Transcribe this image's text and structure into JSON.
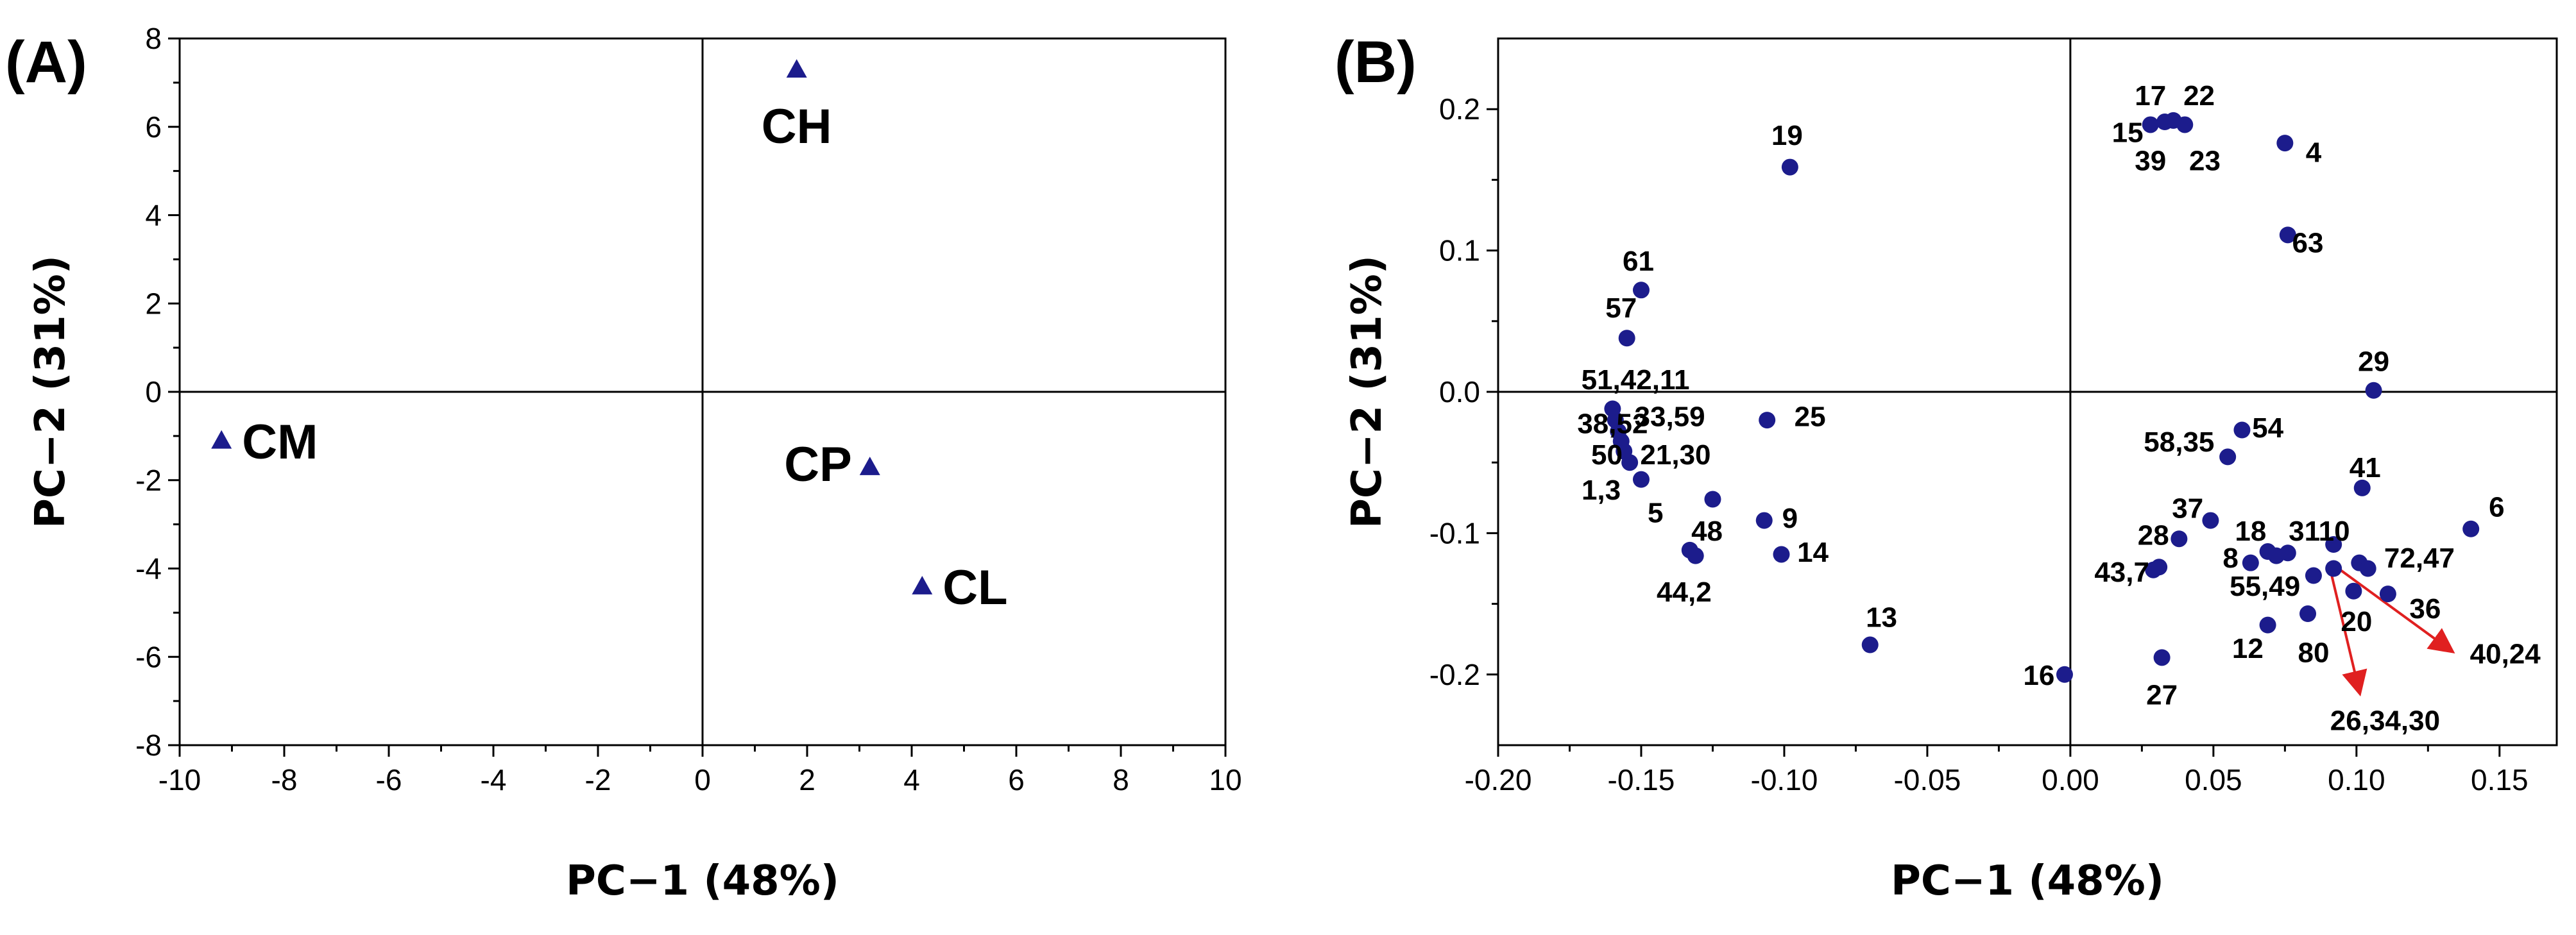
{
  "chart_data": [
    {
      "type": "scatter",
      "panel_label": "(A)",
      "xlabel": "PC−1 (48%)",
      "ylabel": "PC−2 (31%)",
      "xlim": [
        -10,
        10
      ],
      "ylim": [
        -8,
        8
      ],
      "x_ticks": [
        -10,
        -8,
        -6,
        -4,
        -2,
        0,
        2,
        4,
        6,
        8,
        10
      ],
      "y_ticks": [
        -8,
        -6,
        -4,
        -2,
        0,
        2,
        4,
        6,
        8
      ],
      "x_tick_labels": [
        "-10",
        "-8",
        "-6",
        "-4",
        "-2",
        "0",
        "2",
        "4",
        "6",
        "8",
        "10"
      ],
      "y_tick_labels": [
        "-8",
        "-6",
        "-4",
        "-2",
        "0",
        "2",
        "4",
        "6",
        "8"
      ],
      "marker": "triangle",
      "marker_color": "#1c1c8c",
      "points": [
        {
          "label": "CH",
          "x": 1.8,
          "y": 7.3,
          "label_pos": "below"
        },
        {
          "label": "CM",
          "x": -9.2,
          "y": -1.1,
          "label_pos": "right"
        },
        {
          "label": "CP",
          "x": 3.2,
          "y": -1.7,
          "label_pos": "left"
        },
        {
          "label": "CL",
          "x": 4.2,
          "y": -4.4,
          "label_pos": "right"
        }
      ]
    },
    {
      "type": "scatter",
      "panel_label": "(B)",
      "xlabel": "PC−1 (48%)",
      "ylabel": "PC−2 (31%)",
      "xlim": [
        -0.2,
        0.17
      ],
      "ylim": [
        -0.25,
        0.25
      ],
      "x_ticks": [
        -0.2,
        -0.15,
        -0.1,
        -0.05,
        0.0,
        0.05,
        0.1,
        0.15
      ],
      "y_ticks": [
        -0.2,
        -0.1,
        0.0,
        0.1,
        0.2
      ],
      "x_tick_labels": [
        "-0.20",
        "-0.15",
        "-0.10",
        "-0.05",
        "0.00",
        "0.05",
        "0.10",
        "0.15"
      ],
      "y_tick_labels": [
        "-0.2",
        "-0.1",
        "0.0",
        "0.1",
        "0.2"
      ],
      "marker": "circle",
      "marker_color": "#1c1c8c",
      "arrow_color": "#e02020",
      "points": [
        {
          "x": 0.028,
          "y": 0.189
        },
        {
          "x": 0.033,
          "y": 0.191
        },
        {
          "x": 0.036,
          "y": 0.192
        },
        {
          "x": 0.04,
          "y": 0.189
        },
        {
          "x": 0.075,
          "y": 0.176
        },
        {
          "x": -0.098,
          "y": 0.159
        },
        {
          "x": 0.076,
          "y": 0.111
        },
        {
          "x": -0.15,
          "y": 0.072
        },
        {
          "x": -0.155,
          "y": 0.038
        },
        {
          "x": 0.106,
          "y": 0.001
        },
        {
          "x": -0.16,
          "y": -0.012
        },
        {
          "x": -0.159,
          "y": -0.02
        },
        {
          "x": -0.158,
          "y": -0.028
        },
        {
          "x": -0.157,
          "y": -0.035
        },
        {
          "x": -0.156,
          "y": -0.042
        },
        {
          "x": -0.154,
          "y": -0.05
        },
        {
          "x": -0.106,
          "y": -0.02
        },
        {
          "x": -0.15,
          "y": -0.062
        },
        {
          "x": -0.125,
          "y": -0.076
        },
        {
          "x": 0.06,
          "y": -0.027
        },
        {
          "x": 0.055,
          "y": -0.046
        },
        {
          "x": 0.102,
          "y": -0.068
        },
        {
          "x": 0.14,
          "y": -0.097
        },
        {
          "x": -0.107,
          "y": -0.091
        },
        {
          "x": -0.101,
          "y": -0.115
        },
        {
          "x": -0.133,
          "y": -0.112
        },
        {
          "x": -0.131,
          "y": -0.116
        },
        {
          "x": 0.049,
          "y": -0.091
        },
        {
          "x": 0.038,
          "y": -0.104
        },
        {
          "x": 0.069,
          "y": -0.113
        },
        {
          "x": 0.072,
          "y": -0.116
        },
        {
          "x": 0.076,
          "y": -0.114
        },
        {
          "x": 0.092,
          "y": -0.108
        },
        {
          "x": 0.063,
          "y": -0.121
        },
        {
          "x": 0.031,
          "y": -0.124
        },
        {
          "x": 0.029,
          "y": -0.126
        },
        {
          "x": 0.101,
          "y": -0.121
        },
        {
          "x": 0.104,
          "y": -0.125
        },
        {
          "x": 0.085,
          "y": -0.13
        },
        {
          "x": 0.092,
          "y": -0.125
        },
        {
          "x": 0.099,
          "y": -0.141
        },
        {
          "x": 0.111,
          "y": -0.143
        },
        {
          "x": 0.083,
          "y": -0.157
        },
        {
          "x": 0.069,
          "y": -0.165
        },
        {
          "x": -0.07,
          "y": -0.179
        },
        {
          "x": -0.002,
          "y": -0.2
        },
        {
          "x": 0.032,
          "y": -0.188
        }
      ],
      "labels": [
        {
          "text": "17",
          "x": 0.028,
          "y": 0.21
        },
        {
          "text": "22",
          "x": 0.045,
          "y": 0.21
        },
        {
          "text": "15",
          "x": 0.02,
          "y": 0.184
        },
        {
          "text": "39",
          "x": 0.028,
          "y": 0.164
        },
        {
          "text": "23",
          "x": 0.047,
          "y": 0.164
        },
        {
          "text": "4",
          "x": 0.085,
          "y": 0.17
        },
        {
          "text": "19",
          "x": -0.099,
          "y": 0.182
        },
        {
          "text": "63",
          "x": 0.083,
          "y": 0.106
        },
        {
          "text": "61",
          "x": -0.151,
          "y": 0.093
        },
        {
          "text": "57",
          "x": -0.157,
          "y": 0.06
        },
        {
          "text": "29",
          "x": 0.106,
          "y": 0.022
        },
        {
          "text": "51,42,11",
          "x": -0.152,
          "y": 0.009
        },
        {
          "text": "33,59",
          "x": -0.14,
          "y": -0.017
        },
        {
          "text": "38,52",
          "x": -0.16,
          "y": -0.022
        },
        {
          "text": "25",
          "x": -0.091,
          "y": -0.017
        },
        {
          "text": "50",
          "x": -0.162,
          "y": -0.044
        },
        {
          "text": "21,30",
          "x": -0.138,
          "y": -0.044
        },
        {
          "text": "58,35",
          "x": 0.038,
          "y": -0.035
        },
        {
          "text": "54",
          "x": 0.069,
          "y": -0.025
        },
        {
          "text": "1,3",
          "x": -0.164,
          "y": -0.069
        },
        {
          "text": "41",
          "x": 0.103,
          "y": -0.053
        },
        {
          "text": "5",
          "x": -0.145,
          "y": -0.085
        },
        {
          "text": "48",
          "x": -0.127,
          "y": -0.098
        },
        {
          "text": "9",
          "x": -0.098,
          "y": -0.089
        },
        {
          "text": "37",
          "x": 0.041,
          "y": -0.082
        },
        {
          "text": "6",
          "x": 0.149,
          "y": -0.081
        },
        {
          "text": "28",
          "x": 0.029,
          "y": -0.101
        },
        {
          "text": "18",
          "x": 0.063,
          "y": -0.098
        },
        {
          "text": "3110",
          "x": 0.087,
          "y": -0.098
        },
        {
          "text": "14",
          "x": -0.09,
          "y": -0.113
        },
        {
          "text": "8",
          "x": 0.056,
          "y": -0.117
        },
        {
          "text": "72,47",
          "x": 0.122,
          "y": -0.117
        },
        {
          "text": "43,7",
          "x": 0.018,
          "y": -0.127
        },
        {
          "text": "55,49",
          "x": 0.068,
          "y": -0.137
        },
        {
          "text": "44,2",
          "x": -0.135,
          "y": -0.141
        },
        {
          "text": "36",
          "x": 0.124,
          "y": -0.153
        },
        {
          "text": "20",
          "x": 0.1,
          "y": -0.162
        },
        {
          "text": "13",
          "x": -0.066,
          "y": -0.159
        },
        {
          "text": "12",
          "x": 0.062,
          "y": -0.181
        },
        {
          "text": "80",
          "x": 0.085,
          "y": -0.184
        },
        {
          "text": "40,24",
          "x": 0.152,
          "y": -0.185
        },
        {
          "text": "16",
          "x": -0.011,
          "y": -0.2
        },
        {
          "text": "27",
          "x": 0.032,
          "y": -0.214
        },
        {
          "text": "26,34,30",
          "x": 0.11,
          "y": -0.232
        }
      ],
      "arrows": [
        {
          "from_x": 0.093,
          "from_y": -0.124,
          "to_x": 0.133,
          "to_y": -0.183
        },
        {
          "from_x": 0.091,
          "from_y": -0.127,
          "to_x": 0.101,
          "to_y": -0.212
        }
      ]
    }
  ]
}
